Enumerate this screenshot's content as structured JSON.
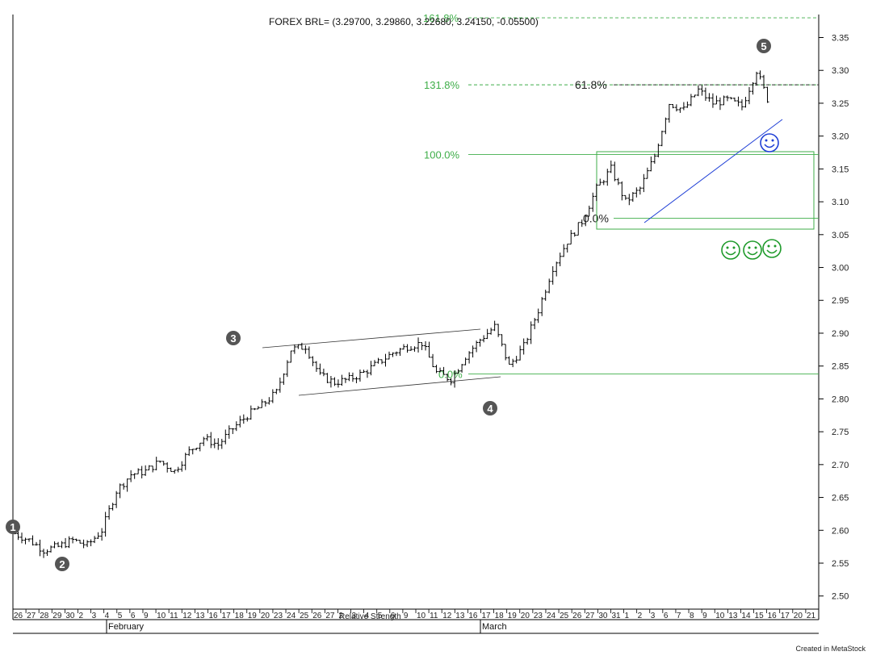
{
  "colors": {
    "green": "#3fae49",
    "wave_marker": "#555555",
    "trendline": "#1f3fd6",
    "bars": "#000000",
    "grid_dash": "#3fae49"
  },
  "footer": "Created in MetaStock",
  "overlapped_label": "Relative Strength",
  "chart_data": {
    "type": "ohlc",
    "title": "FOREX BRL= (3.29700, 3.29860, 3.22680, 3.24150, -0.05500)",
    "ylim": [
      2.48,
      3.385
    ],
    "y_ticks": [
      "3.35",
      "3.30",
      "3.25",
      "3.20",
      "3.15",
      "3.10",
      "3.05",
      "3.00",
      "2.95",
      "2.90",
      "2.85",
      "2.80",
      "2.75",
      "2.70",
      "2.65",
      "2.60",
      "2.55",
      "2.50"
    ],
    "x_tick_labels": [
      "26",
      "27",
      "28",
      "29",
      "30",
      "2",
      "3",
      "4",
      "5",
      "6",
      "9",
      "10",
      "11",
      "12",
      "13",
      "16",
      "17",
      "18",
      "19",
      "20",
      "23",
      "24",
      "25",
      "26",
      "27",
      "2",
      "3",
      "4",
      "5",
      "6",
      "9",
      "10",
      "11",
      "12",
      "13",
      "16",
      "17",
      "18",
      "19",
      "20",
      "23",
      "24",
      "25",
      "26",
      "27",
      "30",
      "31",
      "1",
      "2",
      "3",
      "6",
      "7",
      "8",
      "9",
      "10",
      "13",
      "14",
      "15",
      "16",
      "17",
      "20",
      "21"
    ],
    "months": [
      {
        "label": "February",
        "at_index": 5
      },
      {
        "label": "March",
        "at_index": 25
      }
    ],
    "close_path": [
      [
        0,
        2.595
      ],
      [
        1,
        2.585
      ],
      [
        2,
        2.57
      ],
      [
        3,
        2.575
      ],
      [
        4,
        2.585
      ],
      [
        5,
        2.577
      ],
      [
        6,
        2.6
      ],
      [
        7,
        2.66
      ],
      [
        8,
        2.685
      ],
      [
        9,
        2.69
      ],
      [
        10,
        2.705
      ],
      [
        11,
        2.69
      ],
      [
        12,
        2.72
      ],
      [
        13,
        2.74
      ],
      [
        14,
        2.73
      ],
      [
        15,
        2.755
      ],
      [
        16,
        2.775
      ],
      [
        17,
        2.79
      ],
      [
        18,
        2.81
      ],
      [
        19,
        2.875
      ],
      [
        20,
        2.88
      ],
      [
        21,
        2.835
      ],
      [
        22,
        2.825
      ],
      [
        23,
        2.83
      ],
      [
        24,
        2.84
      ],
      [
        25,
        2.855
      ],
      [
        26,
        2.87
      ],
      [
        27,
        2.88
      ],
      [
        28,
        2.885
      ],
      [
        29,
        2.84
      ],
      [
        30,
        2.83
      ],
      [
        31,
        2.865
      ],
      [
        32,
        2.89
      ],
      [
        33,
        2.91
      ],
      [
        34,
        2.85
      ],
      [
        35,
        2.88
      ],
      [
        36,
        2.935
      ],
      [
        37,
        3.0
      ],
      [
        38,
        3.04
      ],
      [
        39,
        3.07
      ],
      [
        40,
        3.12
      ],
      [
        41,
        3.15
      ],
      [
        42,
        3.1
      ],
      [
        43,
        3.12
      ],
      [
        44,
        3.17
      ],
      [
        45,
        3.25
      ],
      [
        46,
        3.24
      ],
      [
        47,
        3.27
      ],
      [
        48,
        3.25
      ],
      [
        49,
        3.255
      ],
      [
        50,
        3.245
      ],
      [
        51,
        3.3
      ],
      [
        52,
        3.242
      ]
    ],
    "horizontal_levels": [
      {
        "label": "161.8%",
        "value": 3.38,
        "style": "dashed"
      },
      {
        "label": "131.8%",
        "value": 3.278,
        "style": "dashed"
      },
      {
        "label": "61.8%",
        "value": 3.278,
        "style": "dashed"
      },
      {
        "label": "100.0%",
        "value": 3.172,
        "style": "solid"
      },
      {
        "label": "0.0%",
        "value": 3.075,
        "style": "solid"
      },
      {
        "label": "0.0%",
        "value": 2.838,
        "style": "solid"
      }
    ],
    "wave_labels": [
      {
        "label": "1",
        "index": 0,
        "value": 2.605
      },
      {
        "label": "2",
        "index": 2.4,
        "value": 2.553
      },
      {
        "label": "3",
        "index": 11.0,
        "value": 2.9
      },
      {
        "label": "4",
        "index": 23.2,
        "value": 2.797
      },
      {
        "label": "5",
        "index": 36.0,
        "value": 3.35
      }
    ]
  }
}
